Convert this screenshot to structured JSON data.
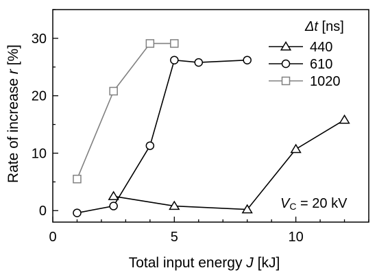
{
  "chart_data": {
    "type": "line",
    "xlabel": {
      "main": "Total input energy ",
      "var": "J",
      "unit": " [kJ]"
    },
    "ylabel": {
      "main": "Rate of increase ",
      "var": "r",
      "unit": " [%]"
    },
    "xlim": [
      0,
      13
    ],
    "ylim": [
      -2,
      35
    ],
    "xticks": [
      0,
      5,
      10
    ],
    "yticks": [
      0,
      10,
      20,
      30
    ],
    "grid": false,
    "legend": {
      "placement": "top-right",
      "title": {
        "var": "Δt",
        "unit": " [ns]"
      }
    },
    "annotation": {
      "var": "V",
      "sub": "C",
      "text": " = 20 kV"
    },
    "series": [
      {
        "name": "440",
        "marker": "triangle",
        "color": "#000000",
        "x": [
          2.5,
          5,
          8,
          10,
          12
        ],
        "y": [
          2.5,
          0.8,
          0.2,
          10.7,
          15.8
        ]
      },
      {
        "name": "610",
        "marker": "circle",
        "color": "#000000",
        "x": [
          1,
          2.5,
          4,
          5,
          6,
          8
        ],
        "y": [
          -0.4,
          0.8,
          11.3,
          26.2,
          25.8,
          26.2
        ]
      },
      {
        "name": "1020",
        "marker": "square",
        "color": "#808080",
        "x": [
          1,
          2.5,
          4,
          5
        ],
        "y": [
          5.5,
          20.8,
          29.1,
          29.1
        ]
      }
    ]
  }
}
